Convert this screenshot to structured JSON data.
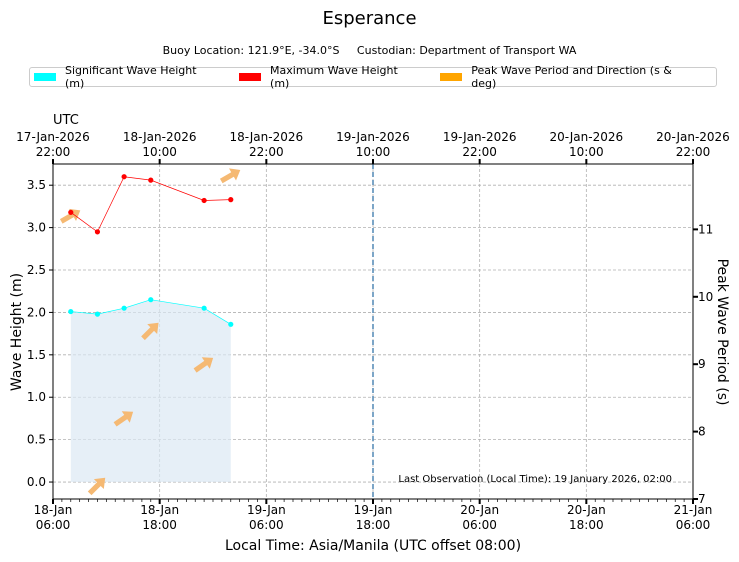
{
  "title": "Esperance",
  "subtitle": "Buoy Location: 121.9°E, -34.0°S     Custodian: Department of Transport WA",
  "legend": [
    {
      "label": "Significant Wave Height (m)",
      "color": "#00ffff"
    },
    {
      "label": "Maximum Wave Height (m)",
      "color": "#ff0000"
    },
    {
      "label": "Peak Wave Period and Direction (s & deg)",
      "color": "#ffa500"
    }
  ],
  "chart_data": {
    "type": "line",
    "title": "Esperance",
    "xlabel": "Local Time: Asia/Manila (UTC offset 08:00)",
    "ylabel": "Wave Height (m)",
    "y2label": "Peak Wave Period (s)",
    "top_axis_label": "UTC",
    "xlim_hours": [
      0,
      72
    ],
    "ylim": [
      -0.2,
      3.75
    ],
    "y2lim": [
      7,
      11.97
    ],
    "yticks": [
      0.0,
      0.5,
      1.0,
      1.5,
      2.0,
      2.5,
      3.0,
      3.5
    ],
    "ytick_labels": [
      "0.0",
      "0.5",
      "1.0",
      "1.5",
      "2.0",
      "2.5",
      "3.0",
      "3.5"
    ],
    "y2ticks": [
      7,
      8,
      9,
      10,
      11
    ],
    "y2tick_labels": [
      "7",
      "8",
      "9",
      "10",
      "11"
    ],
    "xticks_hours": [
      0,
      12,
      24,
      36,
      48,
      60,
      72
    ],
    "xtick_labels_bottom": [
      [
        "18-Jan",
        "06:00"
      ],
      [
        "18-Jan",
        "18:00"
      ],
      [
        "19-Jan",
        "06:00"
      ],
      [
        "19-Jan",
        "18:00"
      ],
      [
        "20-Jan",
        "06:00"
      ],
      [
        "20-Jan",
        "18:00"
      ],
      [
        "21-Jan",
        "06:00"
      ]
    ],
    "xtick_labels_top": [
      [
        "17-Jan-2026",
        "22:00"
      ],
      [
        "18-Jan-2026",
        "10:00"
      ],
      [
        "18-Jan-2026",
        "22:00"
      ],
      [
        "19-Jan-2026",
        "10:00"
      ],
      [
        "19-Jan-2026",
        "22:00"
      ],
      [
        "20-Jan-2026",
        "10:00"
      ],
      [
        "20-Jan-2026",
        "22:00"
      ]
    ],
    "series": [
      {
        "name": "Significant Wave Height (m)",
        "color": "#00ffff",
        "x": [
          2,
          5,
          8,
          11,
          17,
          20
        ],
        "values": [
          2.01,
          1.98,
          2.05,
          2.15,
          2.05,
          1.86
        ]
      },
      {
        "name": "Maximum Wave Height (m)",
        "color": "#ff0000",
        "x": [
          2,
          5,
          8,
          11,
          17,
          20
        ],
        "values": [
          3.18,
          2.95,
          3.6,
          3.56,
          3.32,
          3.33
        ]
      }
    ],
    "period_arrows": {
      "name": "Peak Wave Period and Direction (s & deg)",
      "color": "#f5b973",
      "x": [
        2,
        5,
        8,
        11,
        17,
        20
      ],
      "period_s": [
        11.2,
        7.2,
        8.2,
        9.5,
        9.0,
        11.8
      ],
      "direction_deg": [
        240,
        225,
        235,
        225,
        235,
        240
      ]
    },
    "vline_hours": 36,
    "annotation": "Last Observation (Local Time): 19 January 2026, 02:00"
  }
}
